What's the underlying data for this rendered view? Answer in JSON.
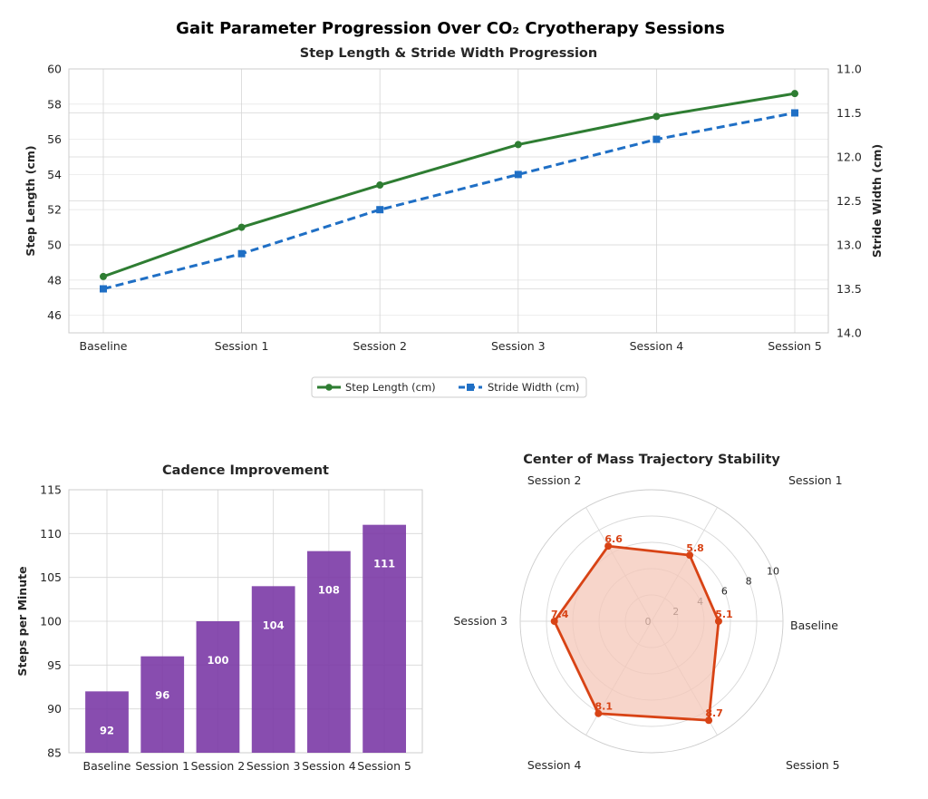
{
  "suptitle": "Gait Parameter Progression Over CO₂ Cryotherapy Sessions",
  "chart_data": [
    {
      "type": "line",
      "title": "Step Length & Stride Width Progression",
      "categories": [
        "Baseline",
        "Session 1",
        "Session 2",
        "Session 3",
        "Session 4",
        "Session 5"
      ],
      "series": [
        {
          "name": "Step Length (cm)",
          "axis": "left",
          "values": [
            48.2,
            51.0,
            53.4,
            55.7,
            57.3,
            58.6
          ],
          "color": "#2e7d32",
          "linestyle": "solid",
          "marker": "circle"
        },
        {
          "name": "Stride Width (cm)",
          "axis": "right",
          "values": [
            13.5,
            13.1,
            12.6,
            12.2,
            11.8,
            11.5
          ],
          "color": "#1f6fc5",
          "linestyle": "dashed",
          "marker": "square"
        }
      ],
      "ylabel_left": "Step Length (cm)",
      "ylabel_right": "Stride Width (cm)",
      "ylim_left": [
        45,
        60
      ],
      "yticks_left": [
        "46",
        "48",
        "50",
        "52",
        "54",
        "56",
        "58",
        "60"
      ],
      "ylim_right": [
        14.0,
        11.0
      ],
      "yticks_right": [
        "11.0",
        "11.5",
        "12.0",
        "12.5",
        "13.0",
        "13.5",
        "14.0"
      ],
      "right_axis_inverted": true,
      "legend_placement": "bottom-center",
      "grid": true
    },
    {
      "type": "bar",
      "title": "Cadence Improvement",
      "categories": [
        "Baseline",
        "Session 1",
        "Session 2",
        "Session 3",
        "Session 4",
        "Session 5"
      ],
      "values": [
        92,
        96,
        100,
        104,
        108,
        111
      ],
      "value_labels": [
        "92",
        "96",
        "100",
        "104",
        "108",
        "111"
      ],
      "ylabel": "Steps per Minute",
      "ylim": [
        85,
        115
      ],
      "yticks": [
        "85",
        "90",
        "95",
        "100",
        "105",
        "110",
        "115"
      ],
      "color": "#7b3aa6",
      "grid": true
    },
    {
      "type": "radar",
      "title": "Center of Mass Trajectory Stability",
      "categories": [
        "Baseline",
        "Session 1",
        "Session 2",
        "Session 3",
        "Session 4",
        "Session 5"
      ],
      "values": [
        5.1,
        5.8,
        6.6,
        7.4,
        8.1,
        8.7
      ],
      "value_labels": [
        "5.1",
        "5.8",
        "6.6",
        "7.4",
        "8.1",
        "8.7"
      ],
      "rlim": [
        0,
        10
      ],
      "rticks": [
        "0",
        "2",
        "4",
        "6",
        "8",
        "10"
      ],
      "color": "#d84315",
      "fill": "#f4c7b8",
      "grid": true
    }
  ]
}
